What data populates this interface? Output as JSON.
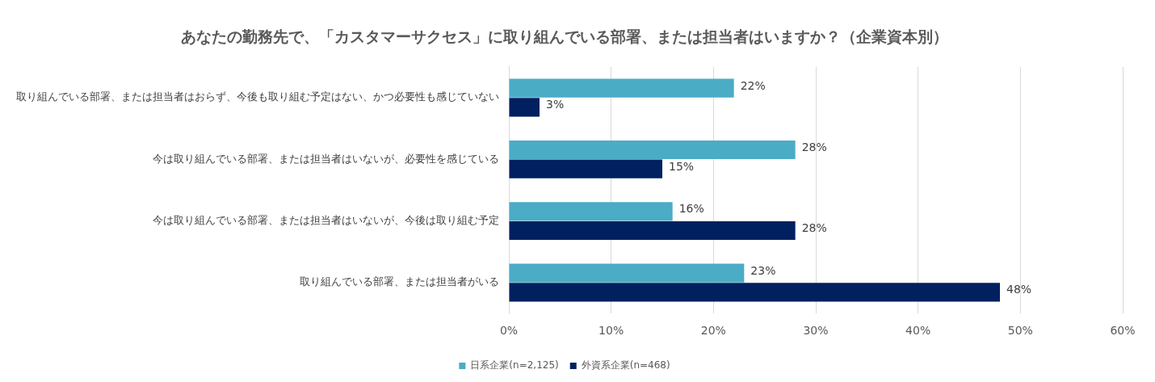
{
  "chart_data": {
    "type": "bar",
    "orientation": "horizontal",
    "title": "あなたの勤務先で、「カスタマーサクセス」に取り組んでいる部署、または担当者はいますか？（企業資本別）",
    "categories": [
      "取り組んでいる部署、または担当者はおらず、今後も取り組む予定はない、かつ必要性も感じていない",
      "今は取り組んでいる部署、または担当者はいないが、必要性を感じている",
      "今は取り組んでいる部署、または担当者はいないが、今後は取り組む予定",
      "取り組んでいる部署、または担当者がいる"
    ],
    "series": [
      {
        "name": "日系企業(n=2,125)",
        "color": "#4bacc6",
        "values": [
          22,
          28,
          16,
          23
        ],
        "value_labels": [
          "22%",
          "28%",
          "16%",
          "23%"
        ]
      },
      {
        "name": "外資系企業(n=468)",
        "color": "#002060",
        "values": [
          3,
          15,
          28,
          48
        ],
        "value_labels": [
          "3%",
          "15%",
          "28%",
          "48%"
        ]
      }
    ],
    "xlim": [
      0,
      60
    ],
    "xticks": [
      {
        "value": 0,
        "label": "0%"
      },
      {
        "value": 10,
        "label": "10%"
      },
      {
        "value": 20,
        "label": "20%"
      },
      {
        "value": 30,
        "label": "30%"
      },
      {
        "value": 40,
        "label": "40%"
      },
      {
        "value": 50,
        "label": "50%"
      },
      {
        "value": 60,
        "label": "60%"
      }
    ],
    "grid": true,
    "legend": "bottom",
    "data_labels": true
  }
}
